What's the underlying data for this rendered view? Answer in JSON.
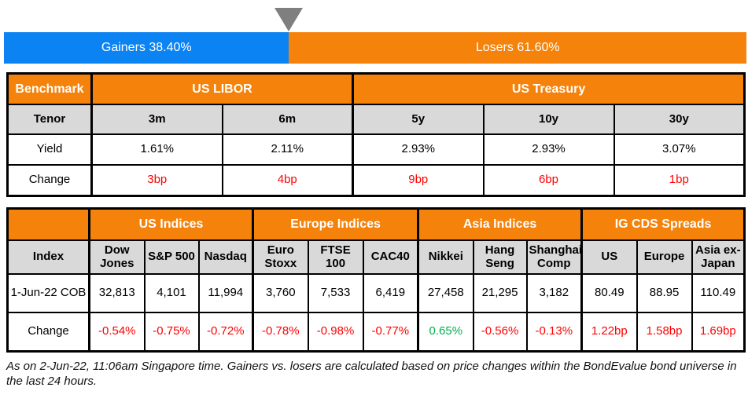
{
  "gauge": {
    "gainers_label": "Gainers 38.40%",
    "losers_label": "Losers 61.60%",
    "gainers_pct": 38.4,
    "losers_pct": 61.6,
    "gainers_color": "#0c83f3",
    "losers_color": "#f5820a",
    "pointer_color": "#7f7f7f"
  },
  "benchmark_table": {
    "corner_label": "Benchmark",
    "group_labels": [
      "US LIBOR",
      "US Treasury"
    ],
    "tenor_row_label": "Tenor",
    "yield_row_label": "Yield",
    "change_row_label": "Change",
    "tenors": [
      "3m",
      "6m",
      "5y",
      "10y",
      "30y"
    ],
    "yields": [
      "1.61%",
      "2.11%",
      "2.93%",
      "2.93%",
      "3.07%"
    ],
    "changes": [
      "3bp",
      "4bp",
      "9bp",
      "6bp",
      "1bp"
    ],
    "change_colors": [
      "#ff0000",
      "#ff0000",
      "#ff0000",
      "#ff0000",
      "#ff0000"
    ]
  },
  "indices_table": {
    "corner_label": "Index",
    "group_labels": [
      "US Indices",
      "Europe Indices",
      "Asia Indices",
      "IG CDS Spreads"
    ],
    "date_row_label": "1-Jun-22 COB",
    "change_row_label": "Change",
    "columns": [
      "Dow Jones",
      "S&P 500",
      "Nasdaq",
      "Euro Stoxx",
      "FTSE 100",
      "CAC40",
      "Nikkei",
      "Hang Seng",
      "Shanghai Comp",
      "US",
      "Europe",
      "Asia ex-Japan"
    ],
    "values": [
      "32,813",
      "4,101",
      "11,994",
      "3,760",
      "7,533",
      "6,419",
      "27,458",
      "21,295",
      "3,182",
      "80.49",
      "88.95",
      "110.49"
    ],
    "changes": [
      "-0.54%",
      "-0.75%",
      "-0.72%",
      "-0.78%",
      "-0.98%",
      "-0.77%",
      "0.65%",
      "-0.56%",
      "-0.13%",
      "1.22bp",
      "1.58bp",
      "1.69bp"
    ],
    "change_colors": [
      "#ff0000",
      "#ff0000",
      "#ff0000",
      "#ff0000",
      "#ff0000",
      "#ff0000",
      "#00b050",
      "#ff0000",
      "#ff0000",
      "#ff0000",
      "#ff0000",
      "#ff0000"
    ]
  },
  "footer": {
    "note": "As on 2-Jun-22, 11:06am Singapore time. Gainers vs. losers are calculated based on price changes within the BondEvalue bond universe in the last 24 hours."
  },
  "chart_data": [
    {
      "type": "bar",
      "title": "Gainers vs Losers (BondEvalue bond universe, last 24 hours)",
      "orientation": "horizontal-stacked",
      "categories": [
        "Gainers",
        "Losers"
      ],
      "values": [
        38.4,
        61.6
      ],
      "unit": "%",
      "colors": [
        "#0c83f3",
        "#f5820a"
      ],
      "annotations": [
        "gray pointer marks gainers/losers boundary"
      ]
    },
    {
      "type": "table",
      "title": "Benchmark yields",
      "column_groups": [
        {
          "label": "US LIBOR",
          "span": 2
        },
        {
          "label": "US Treasury",
          "span": 3
        }
      ],
      "columns": [
        "3m",
        "6m",
        "5y",
        "10y",
        "30y"
      ],
      "rows": [
        {
          "label": "Yield",
          "values": [
            "1.61%",
            "2.11%",
            "2.93%",
            "2.93%",
            "3.07%"
          ]
        },
        {
          "label": "Change",
          "values": [
            "3bp",
            "4bp",
            "9bp",
            "6bp",
            "1bp"
          ]
        }
      ]
    },
    {
      "type": "table",
      "title": "Indices and IG CDS spreads",
      "column_groups": [
        {
          "label": "US Indices",
          "span": 3
        },
        {
          "label": "Europe Indices",
          "span": 3
        },
        {
          "label": "Asia Indices",
          "span": 3
        },
        {
          "label": "IG CDS Spreads",
          "span": 3
        }
      ],
      "columns": [
        "Dow Jones",
        "S&P 500",
        "Nasdaq",
        "Euro Stoxx",
        "FTSE 100",
        "CAC40",
        "Nikkei",
        "Hang Seng",
        "Shanghai Comp",
        "US",
        "Europe",
        "Asia ex-Japan"
      ],
      "rows": [
        {
          "label": "1-Jun-22 COB",
          "values": [
            32813,
            4101,
            11994,
            3760,
            7533,
            6419,
            27458,
            21295,
            3182,
            80.49,
            88.95,
            110.49
          ]
        },
        {
          "label": "Change",
          "values": [
            "-0.54%",
            "-0.75%",
            "-0.72%",
            "-0.78%",
            "-0.98%",
            "-0.77%",
            "0.65%",
            "-0.56%",
            "-0.13%",
            "1.22bp",
            "1.58bp",
            "1.69bp"
          ]
        }
      ]
    }
  ]
}
